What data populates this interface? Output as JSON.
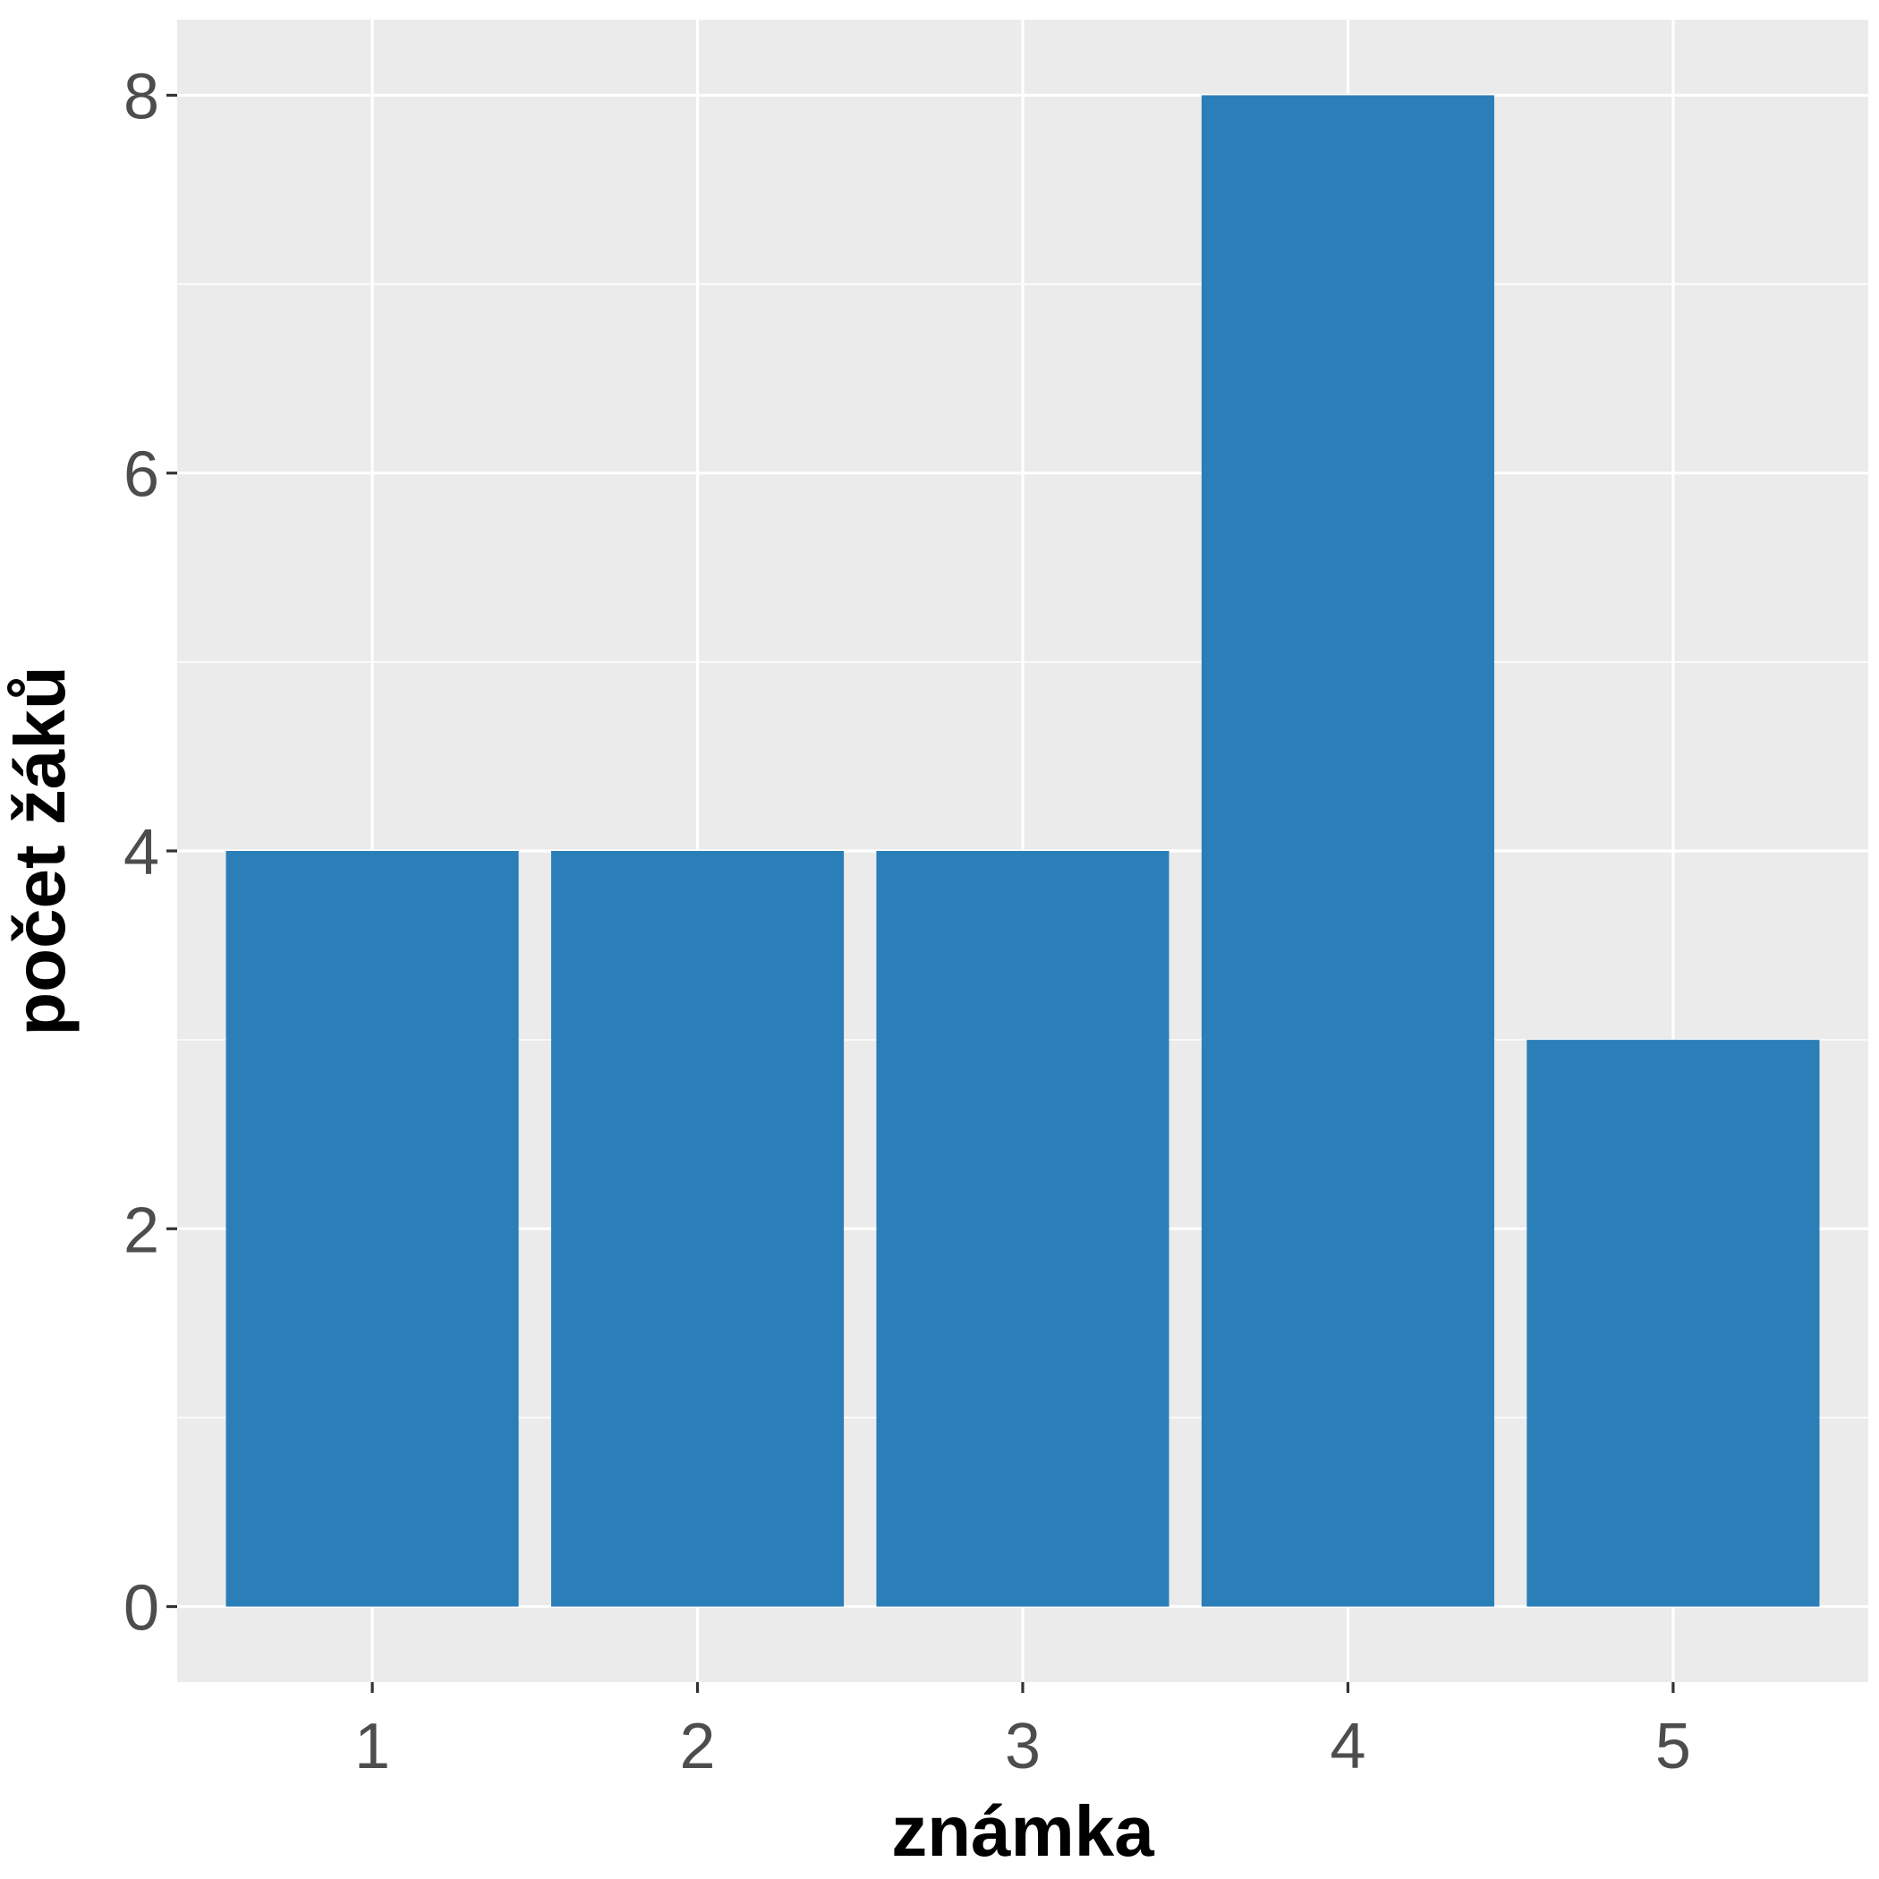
{
  "chart_data": {
    "type": "bar",
    "categories": [
      "1",
      "2",
      "3",
      "4",
      "5"
    ],
    "values": [
      4,
      4,
      4,
      8,
      3
    ],
    "title": "",
    "xlabel": "známka",
    "ylabel": "počet žáků",
    "ylim": [
      -0.4,
      8.4
    ],
    "yticks": [
      0,
      2,
      4,
      6,
      8
    ],
    "grid": true,
    "legend": "none"
  },
  "colors": {
    "bar": "#2b7fb8",
    "panel_background": "#ebebeb",
    "grid": "#ffffff",
    "axis_text": "#4d4d4d",
    "axis_title": "#000000"
  }
}
